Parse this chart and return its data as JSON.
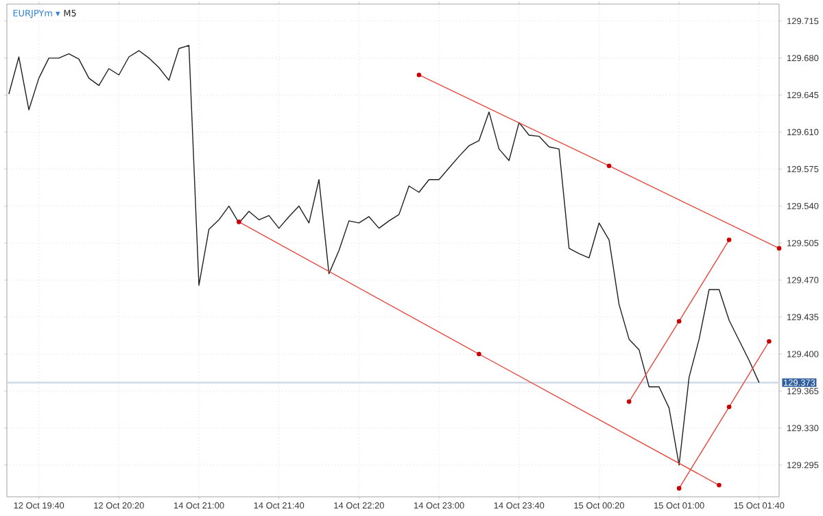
{
  "chart_data": {
    "type": "line",
    "title": "EURJPYm ▾",
    "subtitle": "M5",
    "grid": true,
    "categories": [
      null,
      null,
      null,
      "12 Oct 19:40",
      null,
      null,
      null,
      null,
      null,
      null,
      null,
      "12 Oct 20:20",
      null,
      null,
      null,
      null,
      null,
      null,
      null,
      "14 Oct 21:00",
      null,
      null,
      null,
      null,
      null,
      null,
      null,
      "14 Oct 21:40",
      null,
      null,
      null,
      null,
      null,
      null,
      null,
      "14 Oct 22:20",
      null,
      null,
      null,
      null,
      null,
      null,
      null,
      "14 Oct 23:00",
      null,
      null,
      null,
      null,
      null,
      null,
      null,
      "14 Oct 23:40",
      null,
      null,
      null,
      null,
      null,
      null,
      null,
      "15 Oct 00:20",
      null,
      null,
      null,
      null,
      null,
      null,
      null,
      "15 Oct 01:00",
      null,
      null,
      null,
      null,
      null,
      null,
      null,
      "15 Oct 01:40",
      null,
      null
    ],
    "ylim": [
      129.265,
      129.731
    ],
    "yticks": [
      {
        "value": 129.295,
        "label": "129.295"
      },
      {
        "value": 129.33,
        "label": "129.330"
      },
      {
        "value": 129.365,
        "label": "129.365"
      },
      {
        "value": 129.4,
        "label": "129.400"
      },
      {
        "value": 129.435,
        "label": "129.435"
      },
      {
        "value": 129.47,
        "label": "129.470"
      },
      {
        "value": 129.505,
        "label": "129.505"
      },
      {
        "value": 129.54,
        "label": "129.540"
      },
      {
        "value": 129.575,
        "label": "129.575"
      },
      {
        "value": 129.61,
        "label": "129.610"
      },
      {
        "value": 129.645,
        "label": "129.645"
      },
      {
        "value": 129.68,
        "label": "129.680"
      },
      {
        "value": 129.715,
        "label": "129.715"
      }
    ],
    "ref_lines": [
      {
        "axis": "y",
        "value": 129.373,
        "label": "129.373",
        "color": "#c9d6e3"
      }
    ],
    "series": [
      {
        "color": "#1e1e1e",
        "marker": "none",
        "values": [
          129.646,
          129.681,
          129.631,
          129.661,
          129.68,
          129.68,
          129.684,
          129.679,
          129.661,
          129.654,
          129.67,
          129.664,
          129.681,
          129.687,
          129.68,
          129.671,
          129.659,
          129.689,
          129.692,
          129.465,
          129.518,
          129.527,
          129.54,
          129.524,
          129.535,
          129.527,
          129.531,
          129.519,
          129.53,
          129.54,
          129.524,
          129.565,
          129.476,
          129.498,
          129.526,
          129.524,
          129.53,
          129.519,
          129.526,
          129.532,
          129.559,
          129.553,
          129.565,
          129.565,
          129.576,
          129.587,
          129.597,
          129.602,
          129.629,
          129.594,
          129.583,
          129.619,
          129.607,
          129.606,
          129.596,
          129.594,
          129.5,
          129.495,
          129.491,
          129.524,
          129.508,
          129.447,
          129.414,
          129.404,
          129.369,
          129.369,
          129.349,
          129.295,
          129.378,
          129.414,
          129.461,
          129.461,
          129.432,
          129.413,
          129.394,
          129.373,
          null,
          null
        ]
      },
      {
        "color": "#e8463c",
        "marker": "circle",
        "values": [
          null,
          null,
          null,
          null,
          null,
          null,
          null,
          null,
          null,
          null,
          null,
          null,
          null,
          null,
          null,
          null,
          null,
          null,
          null,
          null,
          null,
          null,
          null,
          129.525,
          null,
          null,
          null,
          null,
          null,
          null,
          null,
          null,
          null,
          null,
          null,
          null,
          null,
          null,
          null,
          null,
          null,
          null,
          null,
          null,
          null,
          null,
          null,
          129.4,
          null,
          null,
          null,
          null,
          null,
          null,
          null,
          null,
          null,
          null,
          null,
          null,
          null,
          null,
          null,
          null,
          null,
          null,
          null,
          null,
          null,
          null,
          null,
          129.276,
          null,
          null,
          null,
          null,
          null,
          null
        ]
      },
      {
        "color": "#e8463c",
        "marker": "circle",
        "values": [
          null,
          null,
          null,
          null,
          null,
          null,
          null,
          null,
          null,
          null,
          null,
          null,
          null,
          null,
          null,
          null,
          null,
          null,
          null,
          null,
          null,
          null,
          null,
          null,
          null,
          null,
          null,
          null,
          null,
          null,
          null,
          null,
          null,
          null,
          null,
          null,
          null,
          null,
          null,
          null,
          null,
          129.664,
          null,
          null,
          null,
          null,
          null,
          null,
          null,
          null,
          null,
          null,
          null,
          null,
          null,
          null,
          null,
          null,
          null,
          null,
          129.578,
          null,
          null,
          null,
          null,
          null,
          null,
          null,
          null,
          null,
          null,
          null,
          null,
          null,
          null,
          null,
          null,
          129.5
        ]
      },
      {
        "color": "#e8463c",
        "marker": "circle",
        "values": [
          null,
          null,
          null,
          null,
          null,
          null,
          null,
          null,
          null,
          null,
          null,
          null,
          null,
          null,
          null,
          null,
          null,
          null,
          null,
          null,
          null,
          null,
          null,
          null,
          null,
          null,
          null,
          null,
          null,
          null,
          null,
          null,
          null,
          null,
          null,
          null,
          null,
          null,
          null,
          null,
          null,
          null,
          null,
          null,
          null,
          null,
          null,
          null,
          null,
          null,
          null,
          null,
          null,
          null,
          null,
          null,
          null,
          null,
          null,
          null,
          null,
          null,
          129.355,
          null,
          null,
          null,
          null,
          129.431,
          null,
          null,
          null,
          null,
          129.508,
          null,
          null,
          null,
          null,
          null
        ]
      },
      {
        "color": "#e8463c",
        "marker": "circle",
        "values": [
          null,
          null,
          null,
          null,
          null,
          null,
          null,
          null,
          null,
          null,
          null,
          null,
          null,
          null,
          null,
          null,
          null,
          null,
          null,
          null,
          null,
          null,
          null,
          null,
          null,
          null,
          null,
          null,
          null,
          null,
          null,
          null,
          null,
          null,
          null,
          null,
          null,
          null,
          null,
          null,
          null,
          null,
          null,
          null,
          null,
          null,
          null,
          null,
          null,
          null,
          null,
          null,
          null,
          null,
          null,
          null,
          null,
          null,
          null,
          null,
          null,
          null,
          null,
          null,
          null,
          null,
          null,
          129.273,
          null,
          null,
          null,
          null,
          129.35,
          null,
          null,
          null,
          129.412,
          null
        ]
      }
    ]
  }
}
